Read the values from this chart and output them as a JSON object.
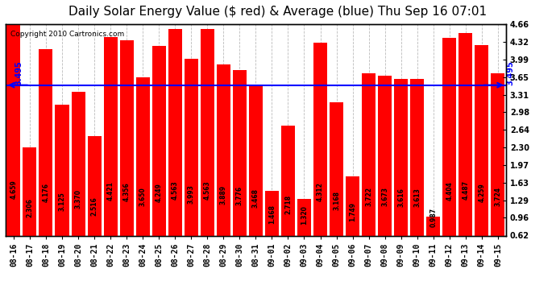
{
  "title": "Daily Solar Energy Value ($ red) & Average (blue) Thu Sep 16 07:01",
  "copyright": "Copyright 2010 Cartronics.com",
  "average": 3.495,
  "bar_color": "#ff0000",
  "avg_line_color": "#0000ff",
  "background_color": "#ffffff",
  "plot_bg_color": "#ffffff",
  "grid_color": "#bbbbbb",
  "categories": [
    "08-16",
    "08-17",
    "08-18",
    "08-19",
    "08-20",
    "08-21",
    "08-22",
    "08-23",
    "08-24",
    "08-25",
    "08-26",
    "08-27",
    "08-28",
    "08-29",
    "08-30",
    "08-31",
    "09-01",
    "09-02",
    "09-03",
    "09-04",
    "09-05",
    "09-06",
    "09-07",
    "09-08",
    "09-09",
    "09-10",
    "09-11",
    "09-12",
    "09-13",
    "09-14",
    "09-15"
  ],
  "values": [
    4.659,
    2.306,
    4.176,
    3.125,
    3.37,
    2.516,
    4.421,
    4.356,
    3.65,
    4.249,
    4.563,
    3.993,
    4.563,
    3.889,
    3.776,
    3.468,
    1.468,
    2.718,
    1.32,
    4.312,
    3.168,
    1.749,
    3.722,
    3.673,
    3.616,
    3.613,
    0.987,
    4.404,
    4.487,
    4.259,
    3.724
  ],
  "ylim_lo": 0.62,
  "ylim_hi": 4.66,
  "yticks": [
    0.62,
    0.96,
    1.29,
    1.63,
    1.97,
    2.3,
    2.64,
    2.98,
    3.31,
    3.65,
    3.99,
    4.32,
    4.66
  ],
  "avg_label": "3.495",
  "title_fontsize": 11,
  "tick_fontsize": 7,
  "bar_label_fontsize": 5.5,
  "copyright_fontsize": 6.5
}
